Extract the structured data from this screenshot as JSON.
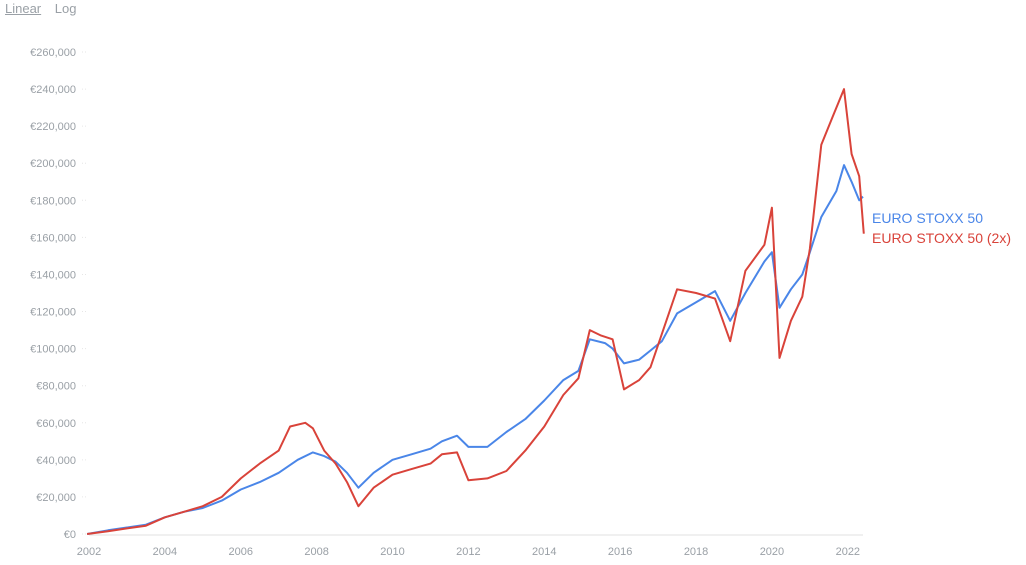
{
  "scale_toggle": {
    "linear_label": "Linear",
    "log_label": "Log",
    "active": "linear"
  },
  "chart_data": {
    "type": "line",
    "title": "",
    "xlabel": "",
    "ylabel": "",
    "xlim": [
      2002,
      2022.4
    ],
    "ylim": [
      0,
      260000
    ],
    "grid": true,
    "legend": "right-end-labels",
    "x_ticks": [
      2002,
      2004,
      2006,
      2008,
      2010,
      2012,
      2014,
      2016,
      2018,
      2020,
      2022
    ],
    "x_tick_labels": [
      "2002",
      "2004",
      "2006",
      "2008",
      "2010",
      "2012",
      "2014",
      "2016",
      "2018",
      "2020",
      "2022"
    ],
    "y_ticks": [
      0,
      20000,
      40000,
      60000,
      80000,
      100000,
      120000,
      140000,
      160000,
      180000,
      200000,
      220000,
      240000,
      260000
    ],
    "y_tick_labels": [
      "€0",
      "€20,000",
      "€40,000",
      "€60,000",
      "€80,000",
      "€100,000",
      "€120,000",
      "€140,000",
      "€160,000",
      "€180,000",
      "€200,000",
      "€220,000",
      "€240,000",
      "€260,000"
    ],
    "series": [
      {
        "name": "EURO STOXX 50",
        "color": "#4a86e8",
        "x": [
          2001.95,
          2002.5,
          2003,
          2003.5,
          2004,
          2004.5,
          2005,
          2005.5,
          2006,
          2006.5,
          2007,
          2007.5,
          2007.9,
          2008.2,
          2008.5,
          2008.8,
          2009.1,
          2009.5,
          2010,
          2010.5,
          2011,
          2011.3,
          2011.7,
          2012,
          2012.5,
          2013,
          2013.5,
          2014,
          2014.5,
          2014.9,
          2015.2,
          2015.6,
          2015.8,
          2016.1,
          2016.5,
          2016.8,
          2017.1,
          2017.5,
          2018,
          2018.5,
          2018.9,
          2019.3,
          2019.8,
          2020.0,
          2020.2,
          2020.5,
          2020.8,
          2021,
          2021.3,
          2021.7,
          2021.9,
          2022.1,
          2022.3,
          2022.4
        ],
        "y": [
          0,
          2000,
          3500,
          5000,
          9000,
          12000,
          14000,
          18000,
          24000,
          28000,
          33000,
          40000,
          44000,
          42000,
          39000,
          33000,
          25000,
          33000,
          40000,
          43000,
          46000,
          50000,
          53000,
          47000,
          47000,
          55000,
          62000,
          72000,
          83000,
          88000,
          105000,
          103000,
          100000,
          92000,
          94000,
          99000,
          104000,
          119000,
          125000,
          131000,
          115000,
          130000,
          147000,
          152000,
          122000,
          132000,
          140000,
          152000,
          171000,
          185000,
          199000,
          190000,
          180000,
          182000
        ]
      },
      {
        "name": "EURO STOXX 50 (2x)",
        "color": "#d9433a",
        "x": [
          2001.95,
          2002.5,
          2003,
          2003.5,
          2004,
          2004.5,
          2005,
          2005.5,
          2006,
          2006.5,
          2007,
          2007.3,
          2007.7,
          2007.9,
          2008.2,
          2008.5,
          2008.8,
          2009.1,
          2009.5,
          2010,
          2010.5,
          2011,
          2011.3,
          2011.7,
          2012,
          2012.5,
          2013,
          2013.5,
          2014,
          2014.5,
          2014.9,
          2015.2,
          2015.5,
          2015.8,
          2016.1,
          2016.5,
          2016.8,
          2017.1,
          2017.5,
          2018,
          2018.5,
          2018.9,
          2019.3,
          2019.8,
          2020.0,
          2020.2,
          2020.5,
          2020.8,
          2021,
          2021.3,
          2021.6,
          2021.9,
          2022.1,
          2022.3,
          2022.42
        ],
        "y": [
          0,
          1500,
          3000,
          4500,
          9000,
          12000,
          15000,
          20000,
          30000,
          38000,
          45000,
          58000,
          60000,
          57000,
          45000,
          38000,
          28000,
          15000,
          25000,
          32000,
          35000,
          38000,
          43000,
          44000,
          29000,
          30000,
          34000,
          45000,
          58000,
          75000,
          84000,
          110000,
          107000,
          105000,
          78000,
          83000,
          90000,
          108000,
          132000,
          130000,
          127000,
          104000,
          142000,
          156000,
          176000,
          95000,
          115000,
          128000,
          154000,
          210000,
          225000,
          240000,
          205000,
          193000,
          162000
        ]
      }
    ]
  }
}
